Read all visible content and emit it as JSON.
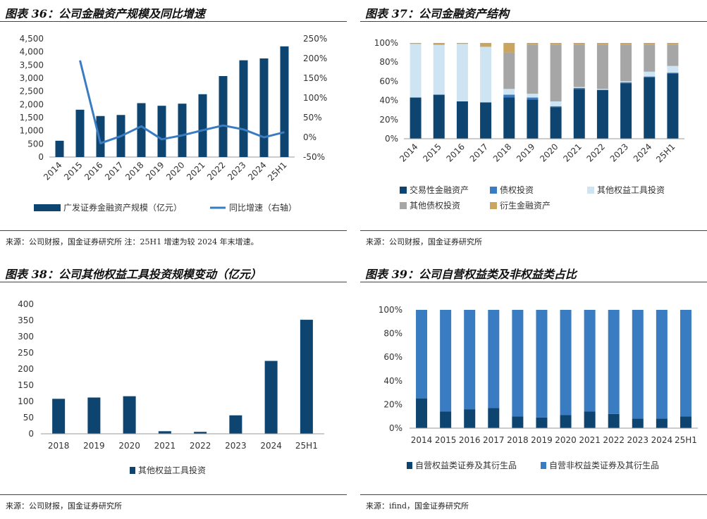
{
  "panels": [
    {
      "title": "图表 36：公司金融资产规模及同比增速",
      "source": "来源：公司财报，国金证券研究所  注：25H1 增速为较 2024 年末增速。"
    },
    {
      "title": "图表 37：公司金融资产结构",
      "source": "来源：公司财报，国金证券研究所"
    },
    {
      "title": "图表 38：公司其他权益工具投资规模变动（亿元）",
      "source": "来源：公司财报，国金证券研究所"
    },
    {
      "title": "图表 39：公司自营权益类及非权益类占比",
      "source": "来源：ifind，国金证券研究所"
    }
  ],
  "chart_data": [
    {
      "type": "bar",
      "title": "图表 36：公司金融资产规模及同比增速",
      "categories": [
        "2014",
        "2015",
        "2016",
        "2017",
        "2018",
        "2019",
        "2020",
        "2021",
        "2022",
        "2023",
        "2024",
        "25H1"
      ],
      "ylim": [
        0,
        4500
      ],
      "yticks": [
        "0",
        "500",
        "1,000",
        "1,500",
        "2,000",
        "2,500",
        "3,000",
        "3,500",
        "4,000",
        "4,500"
      ],
      "y2lim": [
        -50,
        250
      ],
      "y2ticks": [
        "-50%",
        "0%",
        "50%",
        "100%",
        "150%",
        "200%",
        "250%"
      ],
      "series": [
        {
          "name": "广发证券金融资产规模（亿元）",
          "kind": "bar",
          "color": "#0e4470",
          "values": [
            620,
            1800,
            1560,
            1600,
            2050,
            1950,
            2030,
            2390,
            3080,
            3680,
            3750,
            4210
          ]
        },
        {
          "name": "同比增速（右轴）",
          "kind": "line",
          "color": "#3a7cc2",
          "values": [
            null,
            195,
            -15,
            3,
            28,
            -5,
            5,
            18,
            30,
            20,
            0,
            13
          ]
        }
      ]
    },
    {
      "type": "bar",
      "stacked": true,
      "title": "图表 37：公司金融资产结构",
      "categories": [
        "2014",
        "2015",
        "2016",
        "2017",
        "2018",
        "2019",
        "2020",
        "2021",
        "2022",
        "2023",
        "2024",
        "25H1"
      ],
      "ylim": [
        0,
        100
      ],
      "yticks": [
        "0%",
        "20%",
        "40%",
        "60%",
        "80%",
        "100%"
      ],
      "series": [
        {
          "name": "交易性金融资产",
          "color": "#0e4470",
          "values": [
            43,
            46,
            39,
            38,
            43,
            41,
            33,
            52,
            51,
            58,
            64,
            68
          ]
        },
        {
          "name": "债权投资",
          "color": "#3a7cc2",
          "values": [
            0,
            0,
            0,
            0,
            3,
            2,
            1,
            1,
            0,
            1,
            1,
            1
          ]
        },
        {
          "name": "其他权益工具投资",
          "color": "#cfe4f3",
          "values": [
            56,
            52,
            60,
            58,
            6,
            4,
            5,
            1,
            1,
            1,
            5,
            7
          ]
        },
        {
          "name": "其他债权投资",
          "color": "#a6a6a6",
          "values": [
            0,
            0,
            0,
            0,
            38,
            51,
            59,
            44,
            46,
            38,
            28,
            22
          ]
        },
        {
          "name": "衍生金融资产",
          "color": "#c9a55f",
          "values": [
            1,
            2,
            1,
            4,
            10,
            2,
            2,
            2,
            2,
            2,
            2,
            2
          ]
        }
      ]
    },
    {
      "type": "bar",
      "title": "图表 38：公司其他权益工具投资规模变动（亿元）",
      "categories": [
        "2018",
        "2019",
        "2020",
        "2021",
        "2022",
        "2023",
        "2024",
        "25H1"
      ],
      "ylim": [
        0,
        400
      ],
      "yticks": [
        "0",
        "50",
        "100",
        "150",
        "200",
        "250",
        "300",
        "350",
        "400"
      ],
      "series": [
        {
          "name": "其他权益工具投资",
          "color": "#0e4470",
          "values": [
            108,
            112,
            116,
            8,
            6,
            57,
            225,
            352
          ]
        }
      ]
    },
    {
      "type": "bar",
      "stacked": true,
      "title": "图表 39：公司自营权益类及非权益类占比",
      "categories": [
        "2014",
        "2015",
        "2016",
        "2017",
        "2018",
        "2019",
        "2020",
        "2021",
        "2022",
        "2023",
        "2024",
        "25H1"
      ],
      "ylim": [
        0,
        100
      ],
      "yticks": [
        "0%",
        "20%",
        "40%",
        "60%",
        "80%",
        "100%"
      ],
      "series": [
        {
          "name": "自营权益类证券及其衍生品",
          "color": "#0e4470",
          "values": [
            25,
            14,
            16,
            17,
            10,
            9,
            11,
            14,
            12,
            8,
            8,
            10
          ]
        },
        {
          "name": "自营非权益类证券及其衍生品",
          "color": "#3a7cc2",
          "values": [
            75,
            86,
            84,
            83,
            90,
            91,
            89,
            86,
            88,
            92,
            92,
            90
          ]
        }
      ]
    }
  ]
}
